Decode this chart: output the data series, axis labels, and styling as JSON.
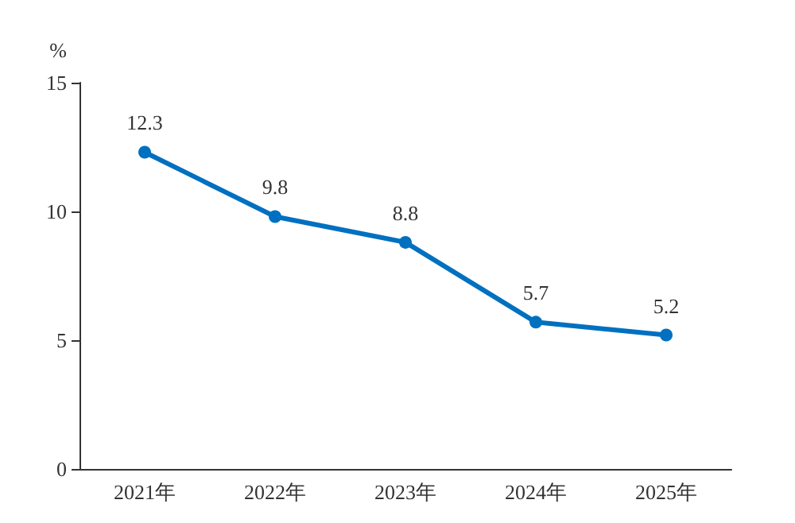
{
  "chart_data": {
    "type": "line",
    "ylabel": "%",
    "categories": [
      "2021年",
      "2022年",
      "2023年",
      "2024年",
      "2025年"
    ],
    "series": [
      {
        "color": "#0070c0",
        "values": [
          12.3,
          9.8,
          8.8,
          5.7,
          5.2
        ]
      }
    ],
    "ylim": [
      0,
      15
    ],
    "yticks": [
      0,
      5,
      10,
      15
    ],
    "grid": false,
    "marker": "circle",
    "line_style": "solid",
    "data_labels": true
  }
}
